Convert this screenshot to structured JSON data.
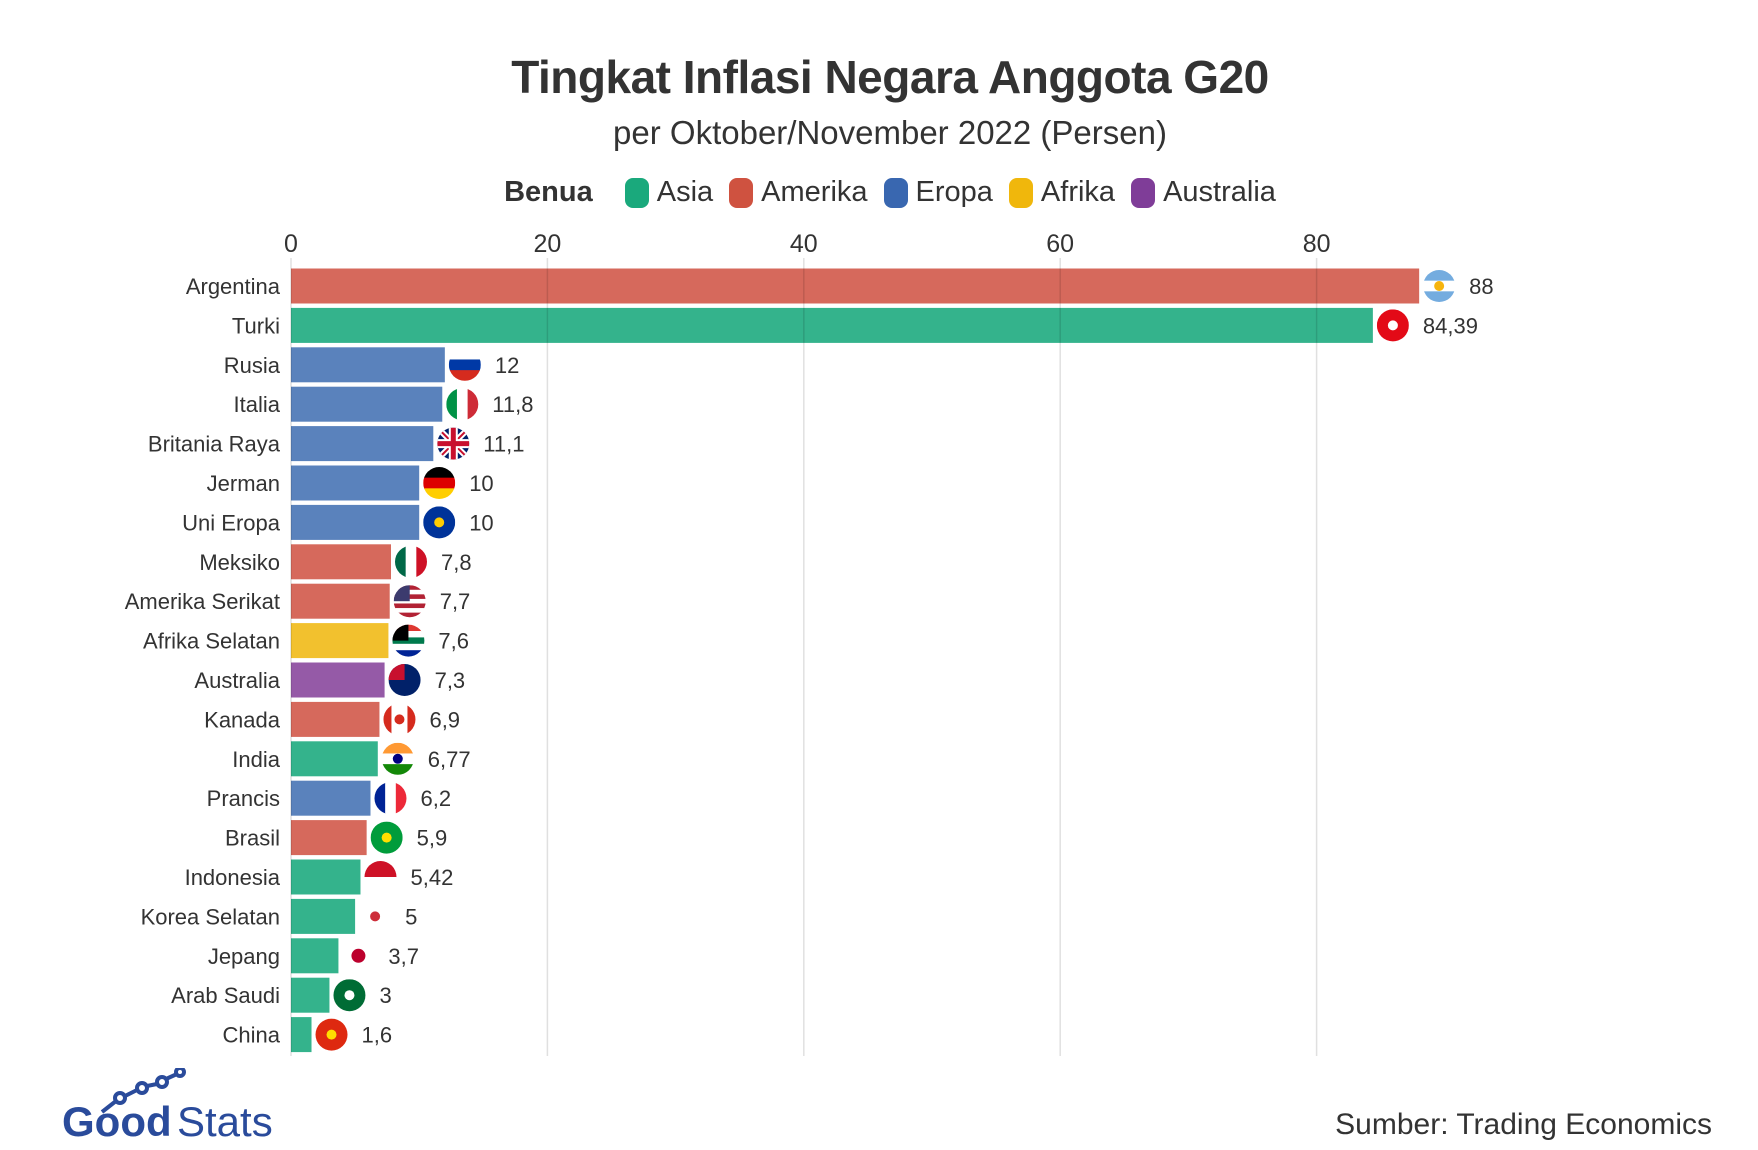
{
  "chart_data": {
    "type": "bar",
    "orientation": "horizontal",
    "title": "Tingkat Inflasi Negara Anggota G20",
    "subtitle": "per Oktober/November 2022 (Persen)",
    "legend": {
      "title": "Benua",
      "placement": "top",
      "items": [
        {
          "label": "Asia",
          "color": "#1aa97c"
        },
        {
          "label": "Amerika",
          "color": "#cf5240"
        },
        {
          "label": "Eropa",
          "color": "#3967b0"
        },
        {
          "label": "Afrika",
          "color": "#f0b70c"
        },
        {
          "label": "Australia",
          "color": "#7f3d98"
        }
      ]
    },
    "xlim": [
      0,
      88
    ],
    "xticks": [
      "0",
      "20",
      "40",
      "60",
      "80"
    ],
    "xtick_values": [
      0,
      20,
      40,
      60,
      80
    ],
    "grid": true,
    "bars": [
      {
        "country": "Argentina",
        "value": 88,
        "label": "88",
        "continent": "Amerika",
        "flag": {
          "dir": "h",
          "colors": [
            "#74acdf",
            "#ffffff",
            "#74acdf"
          ],
          "emblem": "#f6b40e"
        }
      },
      {
        "country": "Turki",
        "value": 84.39,
        "label": "84,39",
        "continent": "Asia",
        "flag": {
          "dir": "h",
          "colors": [
            "#e30a17"
          ],
          "emblem": "#ffffff"
        }
      },
      {
        "country": "Rusia",
        "value": 12,
        "label": "12",
        "continent": "Eropa",
        "flag": {
          "dir": "h",
          "colors": [
            "#ffffff",
            "#0039a6",
            "#d52b1e"
          ]
        }
      },
      {
        "country": "Italia",
        "value": 11.8,
        "label": "11,8",
        "continent": "Eropa",
        "flag": {
          "dir": "v",
          "colors": [
            "#009246",
            "#ffffff",
            "#ce2b37"
          ]
        }
      },
      {
        "country": "Britania Raya",
        "value": 11.1,
        "label": "11,1",
        "continent": "Eropa",
        "flag": {
          "dir": "uk",
          "colors": [
            "#012169",
            "#ffffff",
            "#c8102e"
          ]
        }
      },
      {
        "country": "Jerman",
        "value": 10,
        "label": "10",
        "continent": "Eropa",
        "flag": {
          "dir": "h",
          "colors": [
            "#000000",
            "#dd0000",
            "#ffce00"
          ]
        }
      },
      {
        "country": "Uni Eropa",
        "value": 10,
        "label": "10",
        "continent": "Eropa",
        "flag": {
          "dir": "h",
          "colors": [
            "#003399"
          ],
          "emblem": "#ffcc00"
        }
      },
      {
        "country": "Meksiko",
        "value": 7.8,
        "label": "7,8",
        "continent": "Amerika",
        "flag": {
          "dir": "v",
          "colors": [
            "#006847",
            "#ffffff",
            "#ce1126"
          ]
        }
      },
      {
        "country": "Amerika Serikat",
        "value": 7.7,
        "label": "7,7",
        "continent": "Amerika",
        "flag": {
          "dir": "h",
          "colors": [
            "#b22234",
            "#ffffff",
            "#b22234",
            "#ffffff",
            "#b22234",
            "#ffffff",
            "#b22234"
          ],
          "canton": "#3c3b6e"
        }
      },
      {
        "country": "Afrika Selatan",
        "value": 7.6,
        "label": "7,6",
        "continent": "Afrika",
        "flag": {
          "dir": "h",
          "colors": [
            "#de3831",
            "#ffffff",
            "#007a4d",
            "#ffffff",
            "#002395"
          ],
          "canton": "#000000"
        }
      },
      {
        "country": "Australia",
        "value": 7.3,
        "label": "7,3",
        "continent": "Australia",
        "flag": {
          "dir": "h",
          "colors": [
            "#012169"
          ],
          "canton": "#c8102e"
        }
      },
      {
        "country": "Kanada",
        "value": 6.9,
        "label": "6,9",
        "continent": "Amerika",
        "flag": {
          "dir": "v",
          "colors": [
            "#d52b1e",
            "#ffffff",
            "#ffffff",
            "#d52b1e"
          ],
          "emblem": "#d52b1e"
        }
      },
      {
        "country": "India",
        "value": 6.77,
        "label": "6,77",
        "continent": "Asia",
        "flag": {
          "dir": "h",
          "colors": [
            "#ff9933",
            "#ffffff",
            "#138808"
          ],
          "emblem": "#000080"
        }
      },
      {
        "country": "Prancis",
        "value": 6.2,
        "label": "6,2",
        "continent": "Eropa",
        "flag": {
          "dir": "v",
          "colors": [
            "#002395",
            "#ffffff",
            "#ed2939"
          ]
        }
      },
      {
        "country": "Brasil",
        "value": 5.9,
        "label": "5,9",
        "continent": "Amerika",
        "flag": {
          "dir": "h",
          "colors": [
            "#009c3b"
          ],
          "emblem": "#ffdf00"
        }
      },
      {
        "country": "Indonesia",
        "value": 5.42,
        "label": "5,42",
        "continent": "Asia",
        "flag": {
          "dir": "h",
          "colors": [
            "#ce1126",
            "#ffffff"
          ]
        }
      },
      {
        "country": "Korea Selatan",
        "value": 5,
        "label": "5",
        "continent": "Asia",
        "flag": {
          "dir": "h",
          "colors": [
            "#ffffff"
          ],
          "emblem": "#cd2e3a"
        }
      },
      {
        "country": "Jepang",
        "value": 3.7,
        "label": "3,7",
        "continent": "Asia",
        "flag": {
          "dir": "h",
          "colors": [
            "#ffffff"
          ],
          "emblem": "#bc002d"
        }
      },
      {
        "country": "Arab Saudi",
        "value": 3,
        "label": "3",
        "continent": "Asia",
        "flag": {
          "dir": "h",
          "colors": [
            "#006c35"
          ],
          "emblem": "#ffffff"
        }
      },
      {
        "country": "China",
        "value": 1.6,
        "label": "1,6",
        "continent": "Asia",
        "flag": {
          "dir": "h",
          "colors": [
            "#de2910"
          ],
          "emblem": "#ffde00"
        }
      }
    ],
    "bar_colors": {
      "Asia": "#34b38c",
      "Amerika": "#d6695c",
      "Eropa": "#5a82bc",
      "Afrika": "#f2c12e",
      "Australia": "#955aa7"
    }
  },
  "footer": {
    "logo_text_bold": "Good",
    "logo_text_light": "Stats",
    "logo_color": "#2a4b9b",
    "source": "Sumber: Trading Economics"
  }
}
